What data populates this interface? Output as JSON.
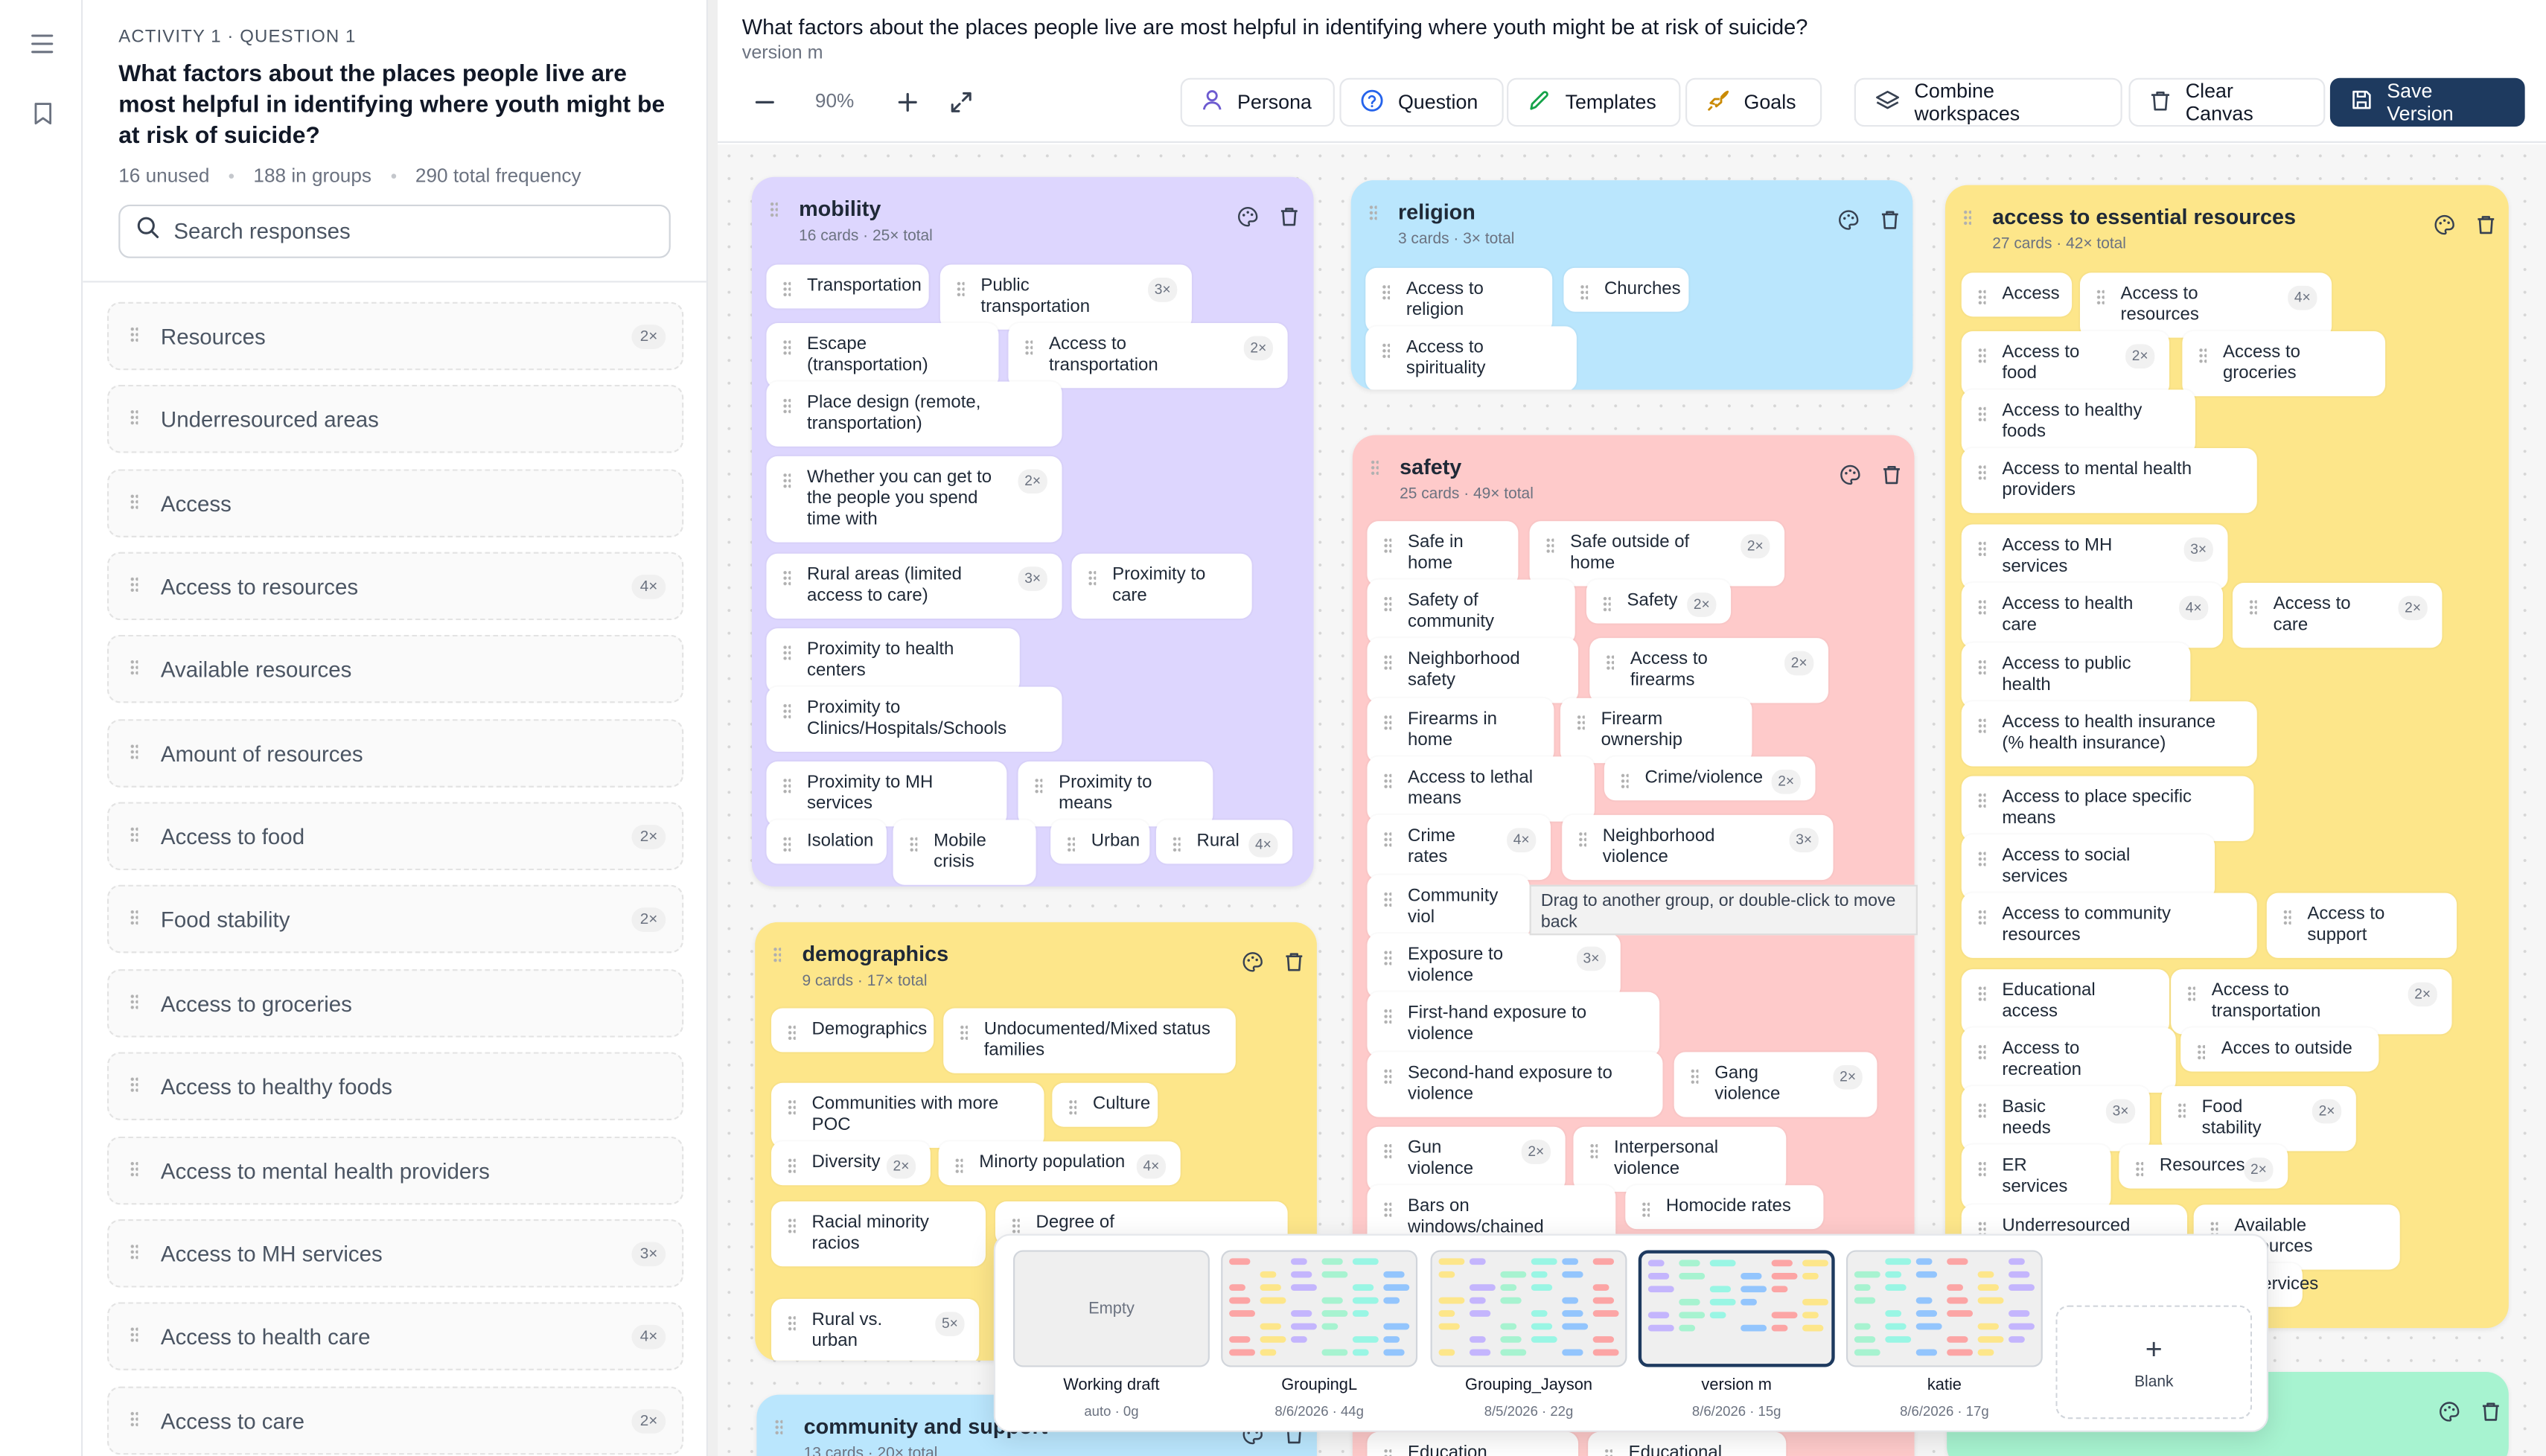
{
  "sidebar": {
    "kicker": "ACTIVITY 1 · QUESTION 1",
    "question": "What factors about the places people live are most helpful in identifying where youth might be at risk of suicide?",
    "stats": {
      "unused": "16 unused",
      "grouped": "188 in groups",
      "total": "290 total frequency"
    },
    "search_placeholder": "Search responses",
    "responses": [
      {
        "label": "Resources",
        "count": "2×"
      },
      {
        "label": "Underresourced areas",
        "count": ""
      },
      {
        "label": "Access",
        "count": ""
      },
      {
        "label": "Access to resources",
        "count": "4×"
      },
      {
        "label": "Available resources",
        "count": ""
      },
      {
        "label": "Amount of resources",
        "count": ""
      },
      {
        "label": "Access to food",
        "count": "2×"
      },
      {
        "label": "Food stability",
        "count": "2×"
      },
      {
        "label": "Access to groceries",
        "count": ""
      },
      {
        "label": "Access to healthy foods",
        "count": ""
      },
      {
        "label": "Access to mental health providers",
        "count": ""
      },
      {
        "label": "Access to MH services",
        "count": "3×"
      },
      {
        "label": "Access to health care",
        "count": "4×"
      },
      {
        "label": "Access to care",
        "count": "2×"
      }
    ]
  },
  "header": {
    "title": "What factors about the places people live are most helpful in identifying where youth might be at risk of suicide?",
    "version": "version m",
    "zoom": "90%"
  },
  "toolbar": {
    "persona": "Persona",
    "question": "Question",
    "templates": "Templates",
    "goals": "Goals",
    "combine": "Combine workspaces",
    "clear": "Clear Canvas",
    "save": "Save Version"
  },
  "colors": {
    "accent": "#1e3a5f",
    "purple": "#ddd6fe",
    "blue": "#bae6fd",
    "yellow": "#fde68a",
    "red": "#fecaca",
    "teal": "#a7f3d0"
  },
  "groups": {
    "mobility": {
      "name": "mobility",
      "meta": "16 cards · 25× total",
      "cards": [
        {
          "label": "Transportation",
          "count": ""
        },
        {
          "label": "Public transportation",
          "count": "3×"
        },
        {
          "label": "Escape (transportation)",
          "count": ""
        },
        {
          "label": "Access to transportation",
          "count": "2×"
        },
        {
          "label": "Place design (remote, transportation)",
          "count": ""
        },
        {
          "label": "Whether you can get to the people you spend time with",
          "count": "2×"
        },
        {
          "label": "Rural areas (limited access to care)",
          "count": "3×"
        },
        {
          "label": "Proximity to care",
          "count": ""
        },
        {
          "label": "Proximity to health centers",
          "count": ""
        },
        {
          "label": "Proximity to Clinics/Hospitals/Schools",
          "count": ""
        },
        {
          "label": "Proximity to MH services",
          "count": ""
        },
        {
          "label": "Proximity to means",
          "count": ""
        },
        {
          "label": "Isolation",
          "count": ""
        },
        {
          "label": "Mobile crisis",
          "count": ""
        },
        {
          "label": "Urban",
          "count": ""
        },
        {
          "label": "Rural",
          "count": "4×"
        }
      ]
    },
    "religion": {
      "name": "religion",
      "meta": "3 cards · 3× total",
      "cards": [
        {
          "label": "Access to religion",
          "count": ""
        },
        {
          "label": "Churches",
          "count": ""
        },
        {
          "label": "Access to spirituality",
          "count": ""
        }
      ]
    },
    "essential": {
      "name": "access to essential resources",
      "meta": "27 cards · 42× total",
      "cards": [
        {
          "label": "Access",
          "count": ""
        },
        {
          "label": "Access to resources",
          "count": "4×"
        },
        {
          "label": "Access to food",
          "count": "2×"
        },
        {
          "label": "Access to groceries",
          "count": ""
        },
        {
          "label": "Access to healthy foods",
          "count": ""
        },
        {
          "label": "Access to mental health providers",
          "count": ""
        },
        {
          "label": "Access to MH services",
          "count": "3×"
        },
        {
          "label": "Access to health care",
          "count": "4×"
        },
        {
          "label": "Access to care",
          "count": "2×"
        },
        {
          "label": "Access to public health",
          "count": ""
        },
        {
          "label": "Access to health insurance (% health insurance)",
          "count": ""
        },
        {
          "label": "Access to place specific means",
          "count": ""
        },
        {
          "label": "Access to social services",
          "count": ""
        },
        {
          "label": "Access to community resources",
          "count": ""
        },
        {
          "label": "Access to support",
          "count": ""
        },
        {
          "label": "Educational access",
          "count": ""
        },
        {
          "label": "Access to transportation",
          "count": "2×"
        },
        {
          "label": "Access to recreation",
          "count": ""
        },
        {
          "label": "Acces to outside",
          "count": ""
        },
        {
          "label": "Basic needs",
          "count": "3×"
        },
        {
          "label": "Food stability",
          "count": "2×"
        },
        {
          "label": "ER services",
          "count": ""
        },
        {
          "label": "Resources",
          "count": "2×"
        },
        {
          "label": "Underresourced areas",
          "count": ""
        },
        {
          "label": "Available resources",
          "count": ""
        },
        {
          "label": "ervices",
          "count": ""
        }
      ]
    },
    "safety": {
      "name": "safety",
      "meta": "25 cards · 49× total",
      "cards": [
        {
          "label": "Safe in home",
          "count": ""
        },
        {
          "label": "Safe outside of home",
          "count": "2×"
        },
        {
          "label": "Safety of community",
          "count": ""
        },
        {
          "label": "Safety",
          "count": "2×"
        },
        {
          "label": "Neighborhood safety",
          "count": ""
        },
        {
          "label": "Access to firearms",
          "count": "2×"
        },
        {
          "label": "Firearms in home",
          "count": ""
        },
        {
          "label": "Firearm ownership",
          "count": ""
        },
        {
          "label": "Access to lethal means",
          "count": ""
        },
        {
          "label": "Crime/violence",
          "count": "2×"
        },
        {
          "label": "Crime rates",
          "count": "4×"
        },
        {
          "label": "Neighborhood violence",
          "count": "3×"
        },
        {
          "label": "Community viol",
          "count": ""
        },
        {
          "label": "Exposure to violence",
          "count": "3×"
        },
        {
          "label": "First-hand exposure to violence",
          "count": ""
        },
        {
          "label": "Second-hand exposure to violence",
          "count": ""
        },
        {
          "label": "Gang violence",
          "count": "2×"
        },
        {
          "label": "Gun violence",
          "count": "2×"
        },
        {
          "label": "Interpersonal violence",
          "count": ""
        },
        {
          "label": "Bars on windows/chained",
          "count": ""
        },
        {
          "label": "Homocide rates",
          "count": ""
        },
        {
          "label": "Education outcomes",
          "count": ""
        },
        {
          "label": "Educational access",
          "count": ""
        }
      ]
    },
    "demographics": {
      "name": "demographics",
      "meta": "9 cards · 17× total",
      "cards": [
        {
          "label": "Demographics",
          "count": ""
        },
        {
          "label": "Undocumented/Mixed status families",
          "count": ""
        },
        {
          "label": "Communities with more POC",
          "count": ""
        },
        {
          "label": "Culture",
          "count": ""
        },
        {
          "label": "Diversity",
          "count": "2×"
        },
        {
          "label": "Minorty population",
          "count": "4×"
        },
        {
          "label": "Racial minority racios",
          "count": ""
        },
        {
          "label": "Degree of",
          "count": ""
        },
        {
          "label": "Rural vs. urban",
          "count": "5×"
        }
      ]
    },
    "community": {
      "name": "community and support",
      "meta": "13 cards · 20× total"
    }
  },
  "tooltip": "Drag to another group, or double-click to move back",
  "versions": [
    {
      "name": "Working draft",
      "meta": "auto · 0g",
      "thumb": "Empty"
    },
    {
      "name": "GroupingL",
      "meta": "8/6/2026 · 44g",
      "thumb": ""
    },
    {
      "name": "Grouping_Jayson",
      "meta": "8/5/2026 · 22g",
      "thumb": ""
    },
    {
      "name": "version m",
      "meta": "8/6/2026 · 15g",
      "thumb": ""
    },
    {
      "name": "katie",
      "meta": "8/6/2026 · 17g",
      "thumb": ""
    }
  ],
  "blank_label": "Blank"
}
